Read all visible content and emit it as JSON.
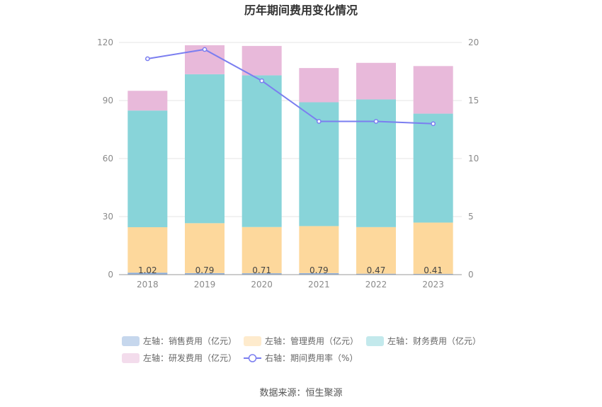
{
  "chart_data": {
    "type": "bar",
    "stacked": true,
    "title": "历年期间费用变化情况",
    "categories": [
      "2018",
      "2019",
      "2020",
      "2021",
      "2022",
      "2023"
    ],
    "ylim_left": [
      0,
      120
    ],
    "yticks_left": [
      0,
      30,
      60,
      90,
      120
    ],
    "ylim_right": [
      0,
      20
    ],
    "yticks_right": [
      0,
      5,
      10,
      15,
      20
    ],
    "series": [
      {
        "name": "左轴：销售费用（亿元）",
        "axis": "left",
        "kind": "bar",
        "color": "#8eb0dc",
        "values": [
          1.02,
          0.79,
          0.71,
          0.79,
          0.47,
          0.41
        ],
        "labels": [
          "1.02",
          "0.79",
          "0.71",
          "0.79",
          "0.47",
          "0.41"
        ]
      },
      {
        "name": "左轴：管理费用（亿元）",
        "axis": "left",
        "kind": "bar",
        "color": "#fdd89c",
        "values": [
          23.5,
          25.8,
          23.9,
          24.3,
          24.1,
          26.5
        ]
      },
      {
        "name": "左轴：财务费用（亿元）",
        "axis": "left",
        "kind": "bar",
        "color": "#88d4d9",
        "values": [
          60.3,
          77.0,
          78.4,
          64.0,
          66.0,
          56.3
        ]
      },
      {
        "name": "左轴：研发费用（亿元）",
        "axis": "left",
        "kind": "bar",
        "color": "#e8b9da",
        "values": [
          10.2,
          15.0,
          15.2,
          17.7,
          18.9,
          24.6
        ]
      },
      {
        "name": "右轴：期间费用率（%）",
        "axis": "right",
        "kind": "line",
        "color": "#7b7ef0",
        "values": [
          18.6,
          19.4,
          16.7,
          13.2,
          13.2,
          13.0
        ]
      }
    ],
    "legend_position": "bottom",
    "grid": true
  },
  "source_text": "数据来源：恒生聚源"
}
